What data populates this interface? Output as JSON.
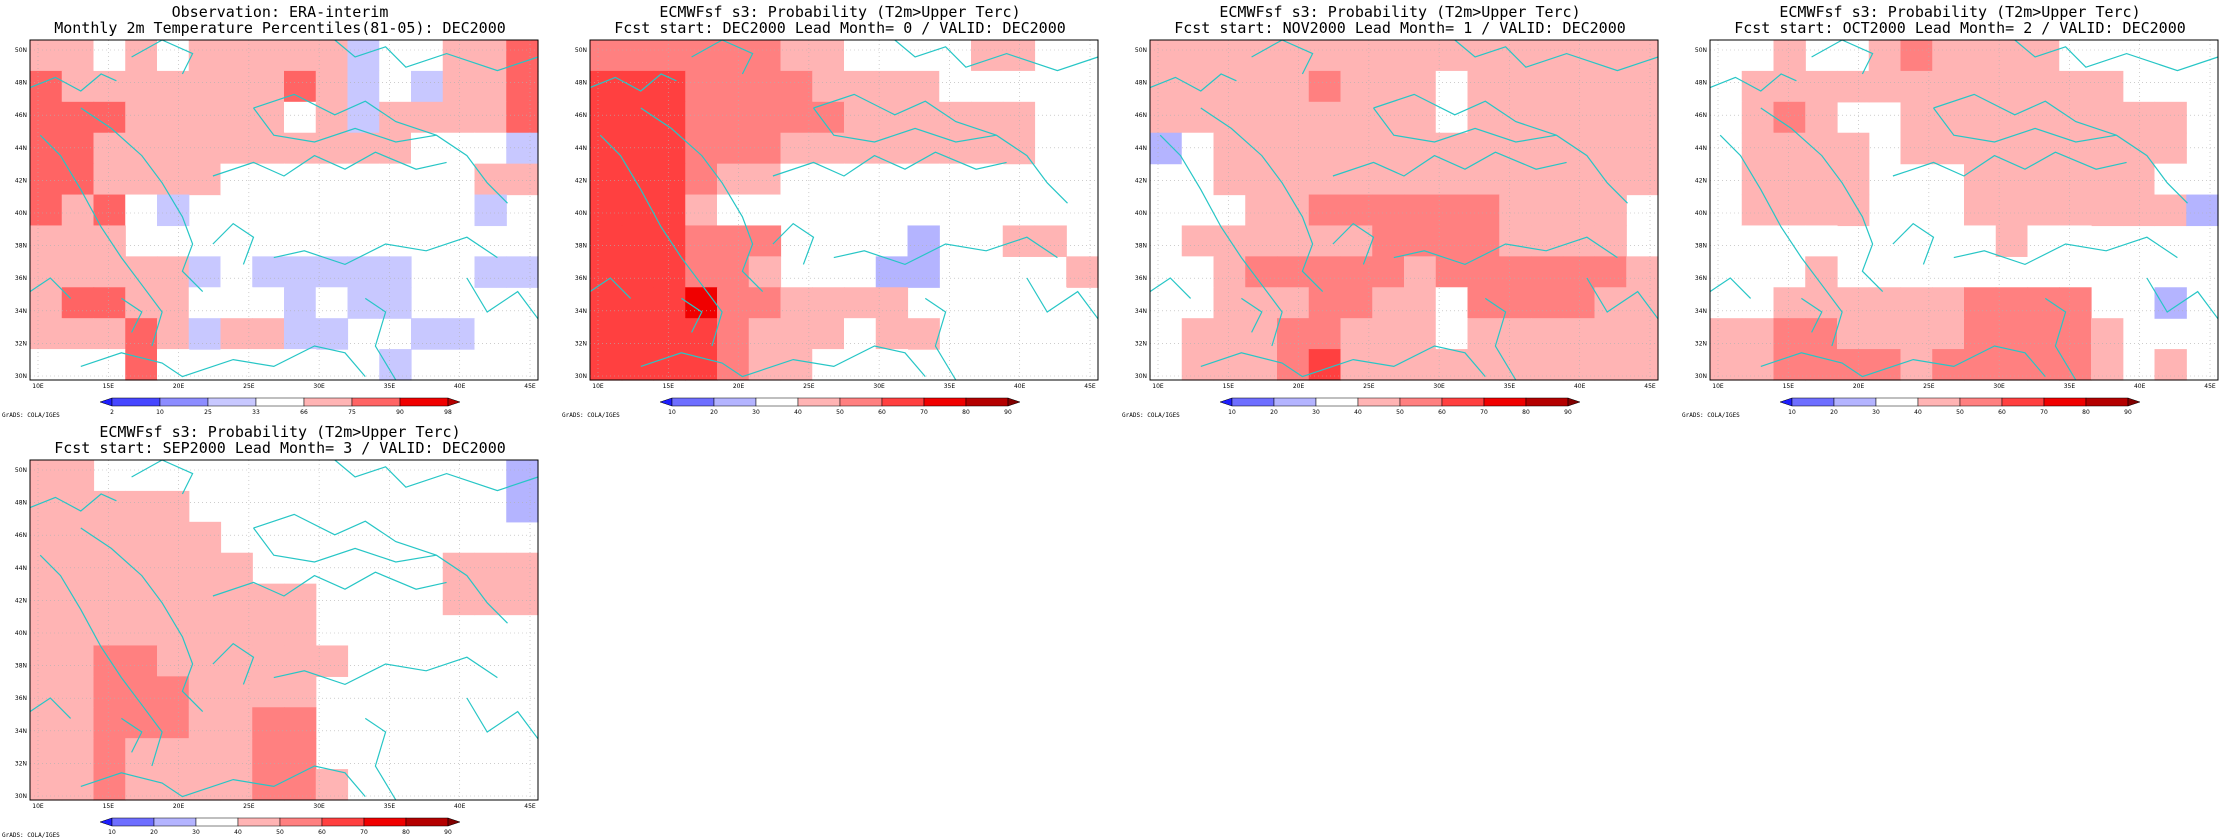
{
  "colors": {
    "scale": [
      "#1e1eff",
      "#6e6eff",
      "#b4b4ff",
      "#ffffff",
      "#ffb4b4",
      "#ff8080",
      "#ff4040",
      "#f00000",
      "#b40000",
      "#800000"
    ],
    "coast": "#27c6c6",
    "grid": "#b0b0b0"
  },
  "axes": {
    "lat_ticks": [
      "30N",
      "32N",
      "34N",
      "36N",
      "38N",
      "40N",
      "42N",
      "44N",
      "46N",
      "48N",
      "50N"
    ],
    "lon_ticks": [
      "10E",
      "15E",
      "20E",
      "25E",
      "30E",
      "35E",
      "40E",
      "45E"
    ]
  },
  "credit": "GrADS: COLA/IGES",
  "panels": [
    {
      "title_line1": "Observation: ERA-interim",
      "title_line2": "Monthly 2m Temperature Percentiles(81-05): DEC2000",
      "colorbar_labels": [
        "2",
        "10",
        "25",
        "33",
        "66",
        "75",
        "90",
        "98"
      ],
      "colorbar_colors": [
        "#1e1eff",
        "#4646ff",
        "#8c8cff",
        "#c8c8ff",
        "#ffffff",
        "#ffb4b4",
        "#ff6464",
        "#f00000",
        "#b40000"
      ],
      "grid": [
        "5545455555344556",
        "6555555565343556",
        "6665555545355556",
        "6655555555554443",
        "6655554444444455",
        "6564300000044430",
        "5550000000000000",
        "5555534333330033",
        "5665544434330000",
        "5556535533003344",
        "4446404440030044"
      ]
    },
    {
      "title_line1": "ECMWFsf s3: Probability (T2m>Upper Terc)",
      "title_line2": "Fcst start: DEC2000   Lead Month= 0 / VALID: DEC2000",
      "colorbar_labels": [
        "10",
        "20",
        "30",
        "40",
        "50",
        "60",
        "70",
        "80",
        "90"
      ],
      "colorbar_colors": [
        "#1e1eff",
        "#6e6eff",
        "#b4b4ff",
        "#ffffff",
        "#ffb4b4",
        "#ff8080",
        "#ff4040",
        "#f00000",
        "#b40000",
        "#800000"
      ],
      "grid": [
        "5555554433334400",
        "6665555444433300",
        "6665555544444400",
        "6665554444444400",
        "6665443333333000",
        "6664330000000000",
        "6665550000200440",
        "6665540002200004",
        "6667554444000030",
        "6666544434400000",
        "6666544333000300"
      ]
    },
    {
      "title_line1": "ECMWFsf s3: Probability (T2m>Upper Terc)",
      "title_line2": "Fcst start: NOV2000   Lead Month= 1 / VALID: DEC2000",
      "colorbar_labels": [
        "10",
        "20",
        "30",
        "40",
        "50",
        "60",
        "70",
        "80",
        "90"
      ],
      "colorbar_colors": [
        "#1e1eff",
        "#6e6eff",
        "#b4b4ff",
        "#ffffff",
        "#ffb4b4",
        "#ff8080",
        "#ff4040",
        "#f00000",
        "#b40000",
        "#800000"
      ],
      "grid": [
        "4444444444444444",
        "4444454443444444",
        "4444444443444444",
        "2344444444444444",
        "0044444444444444",
        "0004455555544440",
        "3444444555544440",
        "3345555545555554",
        "3344455443555544",
        "3444554443444444",
        "3444564444444444"
      ]
    },
    {
      "title_line1": "ECMWFsf s3: Probability (T2m>Upper Terc)",
      "title_line2": "Fcst start: OCT2000   Lead Month= 2 / VALID: DEC2000",
      "colorbar_labels": [
        "10",
        "20",
        "30",
        "40",
        "50",
        "60",
        "70",
        "80",
        "90"
      ],
      "colorbar_colors": [
        "#1e1eff",
        "#6e6eff",
        "#b4b4ff",
        "#ffffff",
        "#ffb4b4",
        "#ff8080",
        "#ff4040",
        "#f00000",
        "#b40000",
        "#800000"
      ],
      "grid": [
        "0040045444430000",
        "3444444444444000",
        "3454004444444440",
        "0444404444444440",
        "0444400044444430",
        "0444400044444442",
        "0333000034330000",
        "0334000000000000",
        "3344444455550020",
        "4455444455554000",
        "4455554555554040"
      ]
    },
    {
      "title_line1": "ECMWFsf s3: Probability (T2m>Upper Terc)",
      "title_line2": "Fcst start: SEP2000   Lead Month= 3 / VALID: DEC2000",
      "colorbar_labels": [
        "10",
        "20",
        "30",
        "40",
        "50",
        "60",
        "70",
        "80",
        "90"
      ],
      "colorbar_colors": [
        "#1e1eff",
        "#6e6eff",
        "#b4b4ff",
        "#ffffff",
        "#ffb4b4",
        "#ff8080",
        "#ff4040",
        "#f00000",
        "#b40000",
        "#800000"
      ],
      "grid": [
        "4400000000000002",
        "4444400000000002",
        "4444440000000000",
        "4444444000000444",
        "4444444440000444",
        "4444444440000000",
        "4455444444000000",
        "4455544440000000",
        "4455544550000000",
        "4454444550000000",
        "4454444554000000"
      ]
    }
  ]
}
